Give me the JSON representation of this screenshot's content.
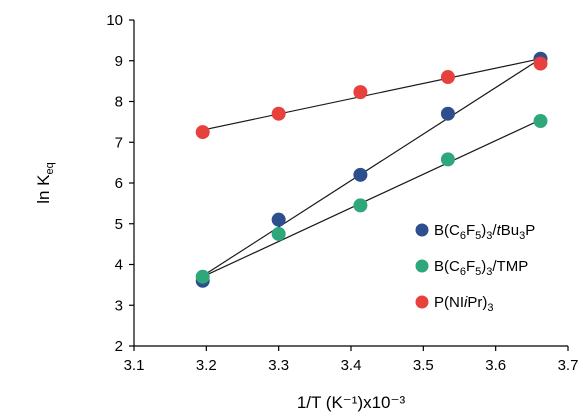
{
  "chart_data": {
    "type": "scatter",
    "xlabel": "1/T (K⁻¹)x10⁻³",
    "ylabel": {
      "main": "ln K",
      "sub": "eq"
    },
    "xlim": [
      3.1,
      3.7
    ],
    "ylim": [
      2,
      10
    ],
    "xticks": [
      "3.1",
      "3.2",
      "3.3",
      "3.4",
      "3.5",
      "3.6",
      "3.7"
    ],
    "yticks": [
      "2",
      "3",
      "4",
      "5",
      "6",
      "7",
      "8",
      "9",
      "10"
    ],
    "grid": false,
    "legend_position": "right",
    "series": [
      {
        "legend": [
          {
            "t": "B(C",
            "c": ""
          },
          {
            "t": "6",
            "c": "sub"
          },
          {
            "t": "F",
            "c": ""
          },
          {
            "t": "5",
            "c": "sub"
          },
          {
            "t": ")",
            "c": ""
          },
          {
            "t": "3",
            "c": "sub"
          },
          {
            "t": "/",
            "c": ""
          },
          {
            "t": "t",
            "c": "ital"
          },
          {
            "t": "Bu",
            "c": ""
          },
          {
            "t": "3",
            "c": "sub"
          },
          {
            "t": "P",
            "c": ""
          }
        ],
        "color": "#2e4f8d",
        "x": [
          3.195,
          3.3,
          3.413,
          3.534,
          3.662
        ],
        "y": [
          3.6,
          5.1,
          6.2,
          7.7,
          9.05
        ],
        "trendline": [
          [
            3.195,
            3.72
          ],
          [
            3.662,
            9.05
          ]
        ]
      },
      {
        "legend": [
          {
            "t": "B(C",
            "c": ""
          },
          {
            "t": "6",
            "c": "sub"
          },
          {
            "t": "F",
            "c": ""
          },
          {
            "t": "5",
            "c": "sub"
          },
          {
            "t": ")",
            "c": ""
          },
          {
            "t": "3",
            "c": "sub"
          },
          {
            "t": "/TMP",
            "c": ""
          }
        ],
        "color": "#2ea87a",
        "x": [
          3.195,
          3.3,
          3.413,
          3.534,
          3.662
        ],
        "y": [
          3.7,
          4.75,
          5.45,
          6.58,
          7.52
        ],
        "trendline": [
          [
            3.195,
            3.7
          ],
          [
            3.662,
            7.55
          ]
        ]
      },
      {
        "legend": [
          {
            "t": "P(NI",
            "c": ""
          },
          {
            "t": "i",
            "c": "ital"
          },
          {
            "t": "Pr)",
            "c": ""
          },
          {
            "t": "3",
            "c": "sub"
          }
        ],
        "color": "#e8413d",
        "x": [
          3.195,
          3.3,
          3.413,
          3.534,
          3.662
        ],
        "y": [
          7.25,
          7.7,
          8.23,
          8.6,
          8.93
        ],
        "trendline": [
          [
            3.195,
            7.3
          ],
          [
            3.662,
            9.05
          ]
        ]
      }
    ]
  }
}
